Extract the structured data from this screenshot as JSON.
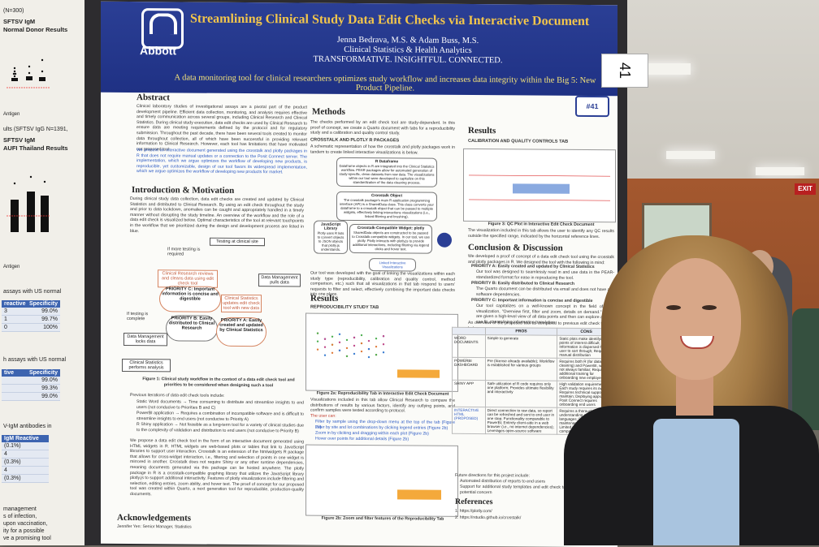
{
  "left_poster": {
    "lines_top": [
      "(N=300)",
      "SFTSV IgM",
      "Normal Donor Results"
    ],
    "lines_mid": [
      "ults (SFTSV IgG N=1391,",
      "SFTSV IgM",
      "AUFI Thailand Results"
    ],
    "axis_label": "Antigen",
    "assays_title": "assays with US normal",
    "table1": {
      "headers": [
        "reactive",
        "Specificity"
      ],
      "rows": [
        [
          "3",
          "99.0%"
        ],
        [
          "1",
          "99.7%"
        ],
        [
          "0",
          "100%"
        ]
      ]
    },
    "assays_title2": "h assays with US normal",
    "table2": {
      "headers": [
        "tive",
        "Specificity"
      ],
      "rows": [
        [
          "",
          "99.0%"
        ],
        [
          "",
          "99.3%"
        ],
        [
          "",
          "99.0%"
        ]
      ]
    },
    "igm_title": "V-IgM antibodies in",
    "table3": {
      "headers": [
        "IgM Reactive"
      ],
      "rows": [
        [
          "(0.1%)"
        ],
        [
          "4"
        ],
        [
          "(0.3%)"
        ],
        [
          "4"
        ],
        [
          "(0.3%)"
        ]
      ]
    },
    "bottom_lines": [
      "management",
      "s of infection,",
      "upon vaccination,",
      "ity for a possible",
      "ve a promising tool"
    ]
  },
  "poster": {
    "logo": "Abbott",
    "title": "Streamlining Clinical Study Data Edit Checks via Interactive Document",
    "authors": "Jenna Bedrava, M.S. & Adam Buss, M.S.",
    "dept": "Clinical Statistics & Health Analytics",
    "motto": "TRANSFORMATIVE. INSIGHTFUL. CONNECTED.",
    "tagline": "A data monitoring tool for clinical researchers optimizes study workflow and increases data integrity within the Big 5: New Product Pipeline.",
    "badge": "#41",
    "abstract_h": "Abstract",
    "abstract_a": "Clinical laboratory studies of investigational assays are a pivotal part of the product development pipeline. Efficient data collection, monitoring, and analysis requires effective and timely communication across several groups, including Clinical Research and Clinical Statistics. During clinical study execution, data edit checks are used by Clinical Research to ensure data are meeting requirements defined by the protocol and for regulatory submission. Throughout the past decade, there have been several tools created to monitor data throughout collection, all of which have been successful in providing relevant information to Clinical Research. However, each tool has limitations that have motivated our proposed tool.",
    "abstract_b": "We present an interactive document generated using the crosstalk and plotly packages in R that does not require manual updates or a connection to the Posit Connect server. The implementation, which we argue optimizes the workflow of developing new products, is reproducible, yet customizable, design of our tool favors its widespread implementation, which we argue optimizes the workflow of developing new products for market.",
    "intro_h": "Introduction & Motivation",
    "intro_text": "During clinical study data collection, data edit checks are created and updated by Clinical Statistics and distributed to Clinical Research. By using an edit check throughout the study and prior to data lockdown, anomalies can be caught and appropriately handled in a timely manner without disrupting the study timeline. An overview of the workflow and the role of a data edit check is visualized below. Optimal characteristics of the tool at relevant touchpoints in the workflow that we prioritized during the design and development process are listed in blue.",
    "wf": {
      "testing_site": "Testing at clinical site",
      "more_testing": "If more testing is required",
      "review_box": "Clinical Research reviews and cleans data using edit check tool",
      "priority_c": "PRIORITY C: Important information is concise and digestible",
      "priority_b": "PRIORITY B: Easily distributed to Clinical Research",
      "priority_a": "PRIORITY A: Easily created and updated by Clinical Statistics",
      "cs_updates": "Clinical Statistics updates edit check tool with new data",
      "dm_pulls": "Data Management pulls data",
      "if_complete": "If testing is complete",
      "dm_locks": "Data Management locks data",
      "cs_analysis": "Clinical Statistics performs analysis"
    },
    "fig1": "Figure 1: Clinical study workflow in the context of a data edit check tool and priorities to be considered when designing such a tool",
    "prev_h": "Previous iterations of data edit check tools include:",
    "prev_1": "Static Word documents → Time consuming to distribute and streamline insights to end users (not conducive to Priorities B and C)",
    "prev_2": "PowerBI application → Requires a combination of incompatible software and is difficult to streamline insights to end users (not conducive to Priority A)",
    "prev_3": "R Shiny application → Not feasible as a long-term tool for a variety of clinical studies due to the complexity of validation and distribution to end users (not conducive to Priority B)",
    "propose": "We propose a data edit check tool in the form of an interactive document generated using HTML widgets in R. HTML widgets are web-based plots or tables that link to JavaScript libraries to support user interaction. Crosstalk is an extension of the htmlwidgets R package that allows for cross-widget interaction, i.e., filtering and selection of points in one widget is mirrored in another. Crosstalk does not require Shiny or any other runtime dependencies, meaning documents generated via this package can be hosted anywhere. The plotly package in R is a crosstalk-compatible graphing library that utilizes the JavaScript library plotly.js to support additional interactivity. Features of plotly visualizations include filtering and selection, editing entries, zoom ability, and hover text. The proof of concept for our proposed tool was created within Quarto, a next generation tool for reproducible, production-quality documents.",
    "ack_h": "Acknowledgements",
    "ack_text": "Jennifer Yen: Senior Manager, Statistics",
    "methods_h": "Methods",
    "methods_text": "The checks performed by an edit check tool are study-dependent. In this proof of concept, we create a Quarto document with tabs for a reproducibility study and a calibration and quality control study.",
    "crosstalk_h": "CROSSTALK AND PLOTLY R PACKAGES",
    "crosstalk_text": "A schematic representation of how the crosstalk and plotly packages work in tandem to create linked interactive visualizations is below.",
    "ct": {
      "b1_t": "R Dataframe",
      "b1": "Dataframe objects in R are integrated into the Clinical Statistics workflow. PEAR packages allow for automated generation of study-specific, clean datasets from raw data. The visualizations within our tool were developed to capitalize on this standardization of the data cleaning process.",
      "b2_t": "Crosstalk Object",
      "b2": "The crosstalk package's main R application programming interface (API) is a SharedData class. This class converts your dataframe to a crosstalk object that can be passed to multiple widgets, effectively linking interactions visualizations (i.e., linked filtering and brushing).",
      "b3_t": "JavaScript Library",
      "b3": "Plotly uses R lists to convert objects to JSON objects that plotly.js understands.",
      "b4_t": "Crosstalk-Compatible Widget: plotly",
      "b4": "SharedData objects are constructed to be passed to Crosstalk-compatible widgets. In our tool, we use plotly. Plotly interacts with plotly.js to provide additional interactions, including filtering via legend clicks and hover text.",
      "b5": "Linked Interactive Visualizations"
    },
    "methods_text2": "Our tool was developed with the goal of linking the visualizations within each study type (reproducibility, calibration and quality control, method comparison, etc.) such that all visualizations in that tab respond to users' requests to filter and select, effectively combining the important data checks into one place.",
    "results_h": "Results",
    "repro_tab_h": "REPRODUCIBILITY STUDY TAB",
    "fig2a": "Figure 2a: Reproducibility Tab in Interactive Edit Check Document",
    "repro_text": "Visualizations included in this tab allow Clinical Research to compare the distributions of results by various factors, identify any outlying points, and confirm samples were tested according to protocol.",
    "user_can_h": "The user can:",
    "user_can": [
      "Filter by sample using the drop-down menu at the top of the tab (Figure 2a)",
      "Filter by site and lot combinations by clicking legend entries (Figure 2b)",
      "Zoom in by clicking and dragging within each plot (Figure 2b)",
      "Hover over points for additional details (Figure 2b)"
    ],
    "fig2b": "Figure 2b: Zoom and filter features of the Reproducibility Tab",
    "results_h2": "Results",
    "calib_tab_h": "CALIBRATION AND QUALITY CONTROLS TAB",
    "fig3": "Figure 3: QC Plot in Interactive Edit Check Document",
    "calib_text": "The visualization included in this tab allows the user to identify any QC results outside the specified range, indicated by the horizontal reference lines.",
    "concl_h": "Conclusion & Discussion",
    "concl_text": "We developed a proof of concept of a data edit check tool using the crosstalk and plotly packages in R. We designed the tool with the following in mind:",
    "concl_items": [
      "PRIORITY A: Easily created and updated by Clinical Statistics",
      "Our tool was designed to seamlessly read in and use data in the PEAR-standardized format for ease in reproducing the tool.",
      "PRIORITY B: Easily distributed to Clinical Research",
      "The Quarto document can be distributed via email and does not have any software dependencies.",
      "PRIORITY C: Important information is concise and digestible",
      "Our tool capitalizes on a well-known concept in the field of data visualization, \"Overview first, filter and zoom, details on demand.\" Users are given a high-level view of all data points and then can explore as they see fit, streamlining information translation."
    ],
    "overview_text": "An overview of the proposed tool as compared to previous edit check tools is below.",
    "table": {
      "headers": [
        "",
        "PROS",
        "CONS"
      ],
      "rows": [
        [
          "WORD DOCUMENTS",
          "Simple to generate",
          "Static plots make identifying points of interest difficult; Information is dispersed for the user to sort through; Requires manual distribution"
        ],
        [
          "POWERBI DASHBOARD",
          "Pre (license already available); Workflow is established for various groups",
          "Requires both R (for data cleaning) and PowerBI, which is not always familiar; Requires additional training for onboarding new employees"
        ],
        [
          "SHINY APP",
          "Safe utilization of R code requires only one platform; Provides ultimate flexibility and interactivity",
          "High validation requirements; Each study requires its own app; Requires technical support to maintain; Deploying apps to R Posit Connect requires onboarding end users"
        ],
        [
          "INTERACTIVE HTML (PROPOSED)",
          "Direct connection to raw data, so report can be refreshed and sent to end user in one step; Functionality comparable to PowerBI; Entirely client-side in a web browser (i.e., no internet dependencies); Leverages open-source software",
          "Requires a thorough understanding of programming languages; Requires ongoing maintenance for updates; Limited interactive capabilities compared to R Shiny"
        ]
      ]
    },
    "future_h": "Future directions for this project include:",
    "future": [
      "Automated distribution of reports to end users",
      "Support for additional study templates and edit check tables with data points of potential concern"
    ],
    "refs_h": "References",
    "refs": [
      "1. https://plotly.com/",
      "2. https://rstudio.github.io/crosstalk/"
    ]
  },
  "number_card": "41",
  "exit_sign": "EXIT"
}
